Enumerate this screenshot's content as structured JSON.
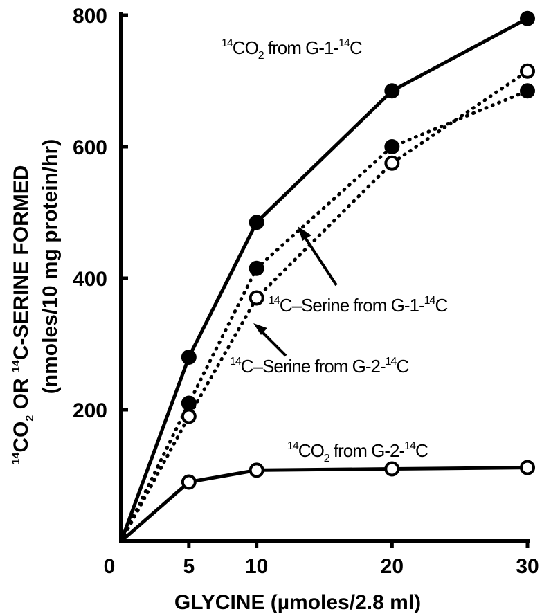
{
  "chart_data": {
    "type": "line",
    "xlabel": "GLYCINE (µmoles/2.8 ml)",
    "ylabel_line1": {
      "iso1": "14",
      "p1": "CO",
      "sub": "2",
      "p2": " OR ",
      "iso2": "14",
      "p3": "C-SERINE FORMED"
    },
    "ylabel_line2": "(nmoles/10 mg protein/hr)",
    "xlim": [
      0,
      30
    ],
    "ylim": [
      0,
      800
    ],
    "x_ticks": [
      "0",
      "5",
      "10",
      "20",
      "30"
    ],
    "y_ticks": [
      "200",
      "400",
      "600",
      "800"
    ],
    "grid": false,
    "series": [
      {
        "name": "14CO2 from G-1-14C",
        "style": "solid",
        "marker": "filled",
        "x": [
          0,
          5,
          10,
          20,
          30
        ],
        "y": [
          0,
          280,
          485,
          685,
          795
        ]
      },
      {
        "name": "14C-Serine from G-1-14C",
        "style": "dotted",
        "marker": "filled",
        "x": [
          0,
          5,
          10,
          20,
          30
        ],
        "y": [
          0,
          210,
          415,
          600,
          685
        ]
      },
      {
        "name": "14C-Serine from G-2-14C",
        "style": "dotted",
        "marker": "open",
        "x": [
          0,
          5,
          10,
          20,
          30
        ],
        "y": [
          0,
          190,
          370,
          575,
          715
        ]
      },
      {
        "name": "14CO2 from G-2-14C",
        "style": "solid",
        "marker": "open",
        "x": [
          0,
          5,
          10,
          20,
          30
        ],
        "y": [
          0,
          90,
          108,
          110,
          112
        ]
      }
    ],
    "annotations": {
      "a1": {
        "iso1": "14",
        "p1": "CO",
        "sub": "2",
        "p2": " from G-1-",
        "iso2": "14",
        "p3": "C"
      },
      "a2": {
        "iso1": "14",
        "p1": "C–Serine from G-1-",
        "iso2": "14",
        "p2": "C"
      },
      "a3": {
        "iso1": "14",
        "p1": "C–Serine from G-2-",
        "iso2": "14",
        "p2": "C"
      },
      "a4": {
        "iso1": "14",
        "p1": "CO",
        "sub": "2",
        "p2": " from G-2-",
        "iso2": "14",
        "p3": "C"
      }
    }
  }
}
